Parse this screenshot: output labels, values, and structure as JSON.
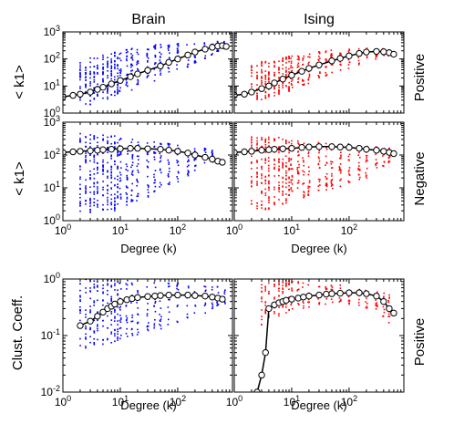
{
  "figure": {
    "column_titles": [
      "Brain",
      "Ising"
    ],
    "row_titles": [
      "Positive",
      "Negative",
      "Positive"
    ],
    "xlabel": "Degree (k)",
    "ylabels": [
      "< k1>",
      "< k1>",
      "Clust. Coeff."
    ],
    "colors": {
      "brain": "#0000ff",
      "ising": "#ff0000",
      "mean": "#000000"
    }
  },
  "chart_data": [
    {
      "type": "scatter",
      "panel": "brain-positive",
      "column": "Brain",
      "row_label": "Positive",
      "x_scale": "log",
      "y_scale": "log",
      "xlim": [
        1,
        900
      ],
      "ylim": [
        1,
        1000
      ],
      "x_ticks": [
        "10^0",
        "10^1",
        "10^2"
      ],
      "y_ticks": [
        "10^0",
        "10^1",
        "10^2",
        "10^3"
      ],
      "ylabel": "< k1>",
      "scatter_color": "#0000ff",
      "scatter_x": [
        2,
        2.5,
        3,
        3.5,
        4,
        5,
        6,
        7,
        8,
        9,
        10,
        13,
        16,
        20,
        30,
        40,
        50,
        70,
        100,
        150,
        200,
        300,
        400,
        500,
        650
      ],
      "scatter_ymin": [
        2,
        2,
        2,
        2,
        3,
        3,
        3,
        4,
        4,
        5,
        5,
        6,
        7,
        9,
        12,
        15,
        20,
        25,
        35,
        50,
        70,
        100,
        140,
        180,
        220
      ],
      "scatter_ymax": [
        80,
        100,
        110,
        120,
        140,
        150,
        160,
        170,
        180,
        200,
        220,
        250,
        280,
        300,
        320,
        340,
        360,
        380,
        400,
        420,
        440,
        460,
        480,
        480,
        450
      ],
      "mean_x": [
        1,
        1.5,
        2,
        3,
        4,
        5,
        7,
        10,
        15,
        20,
        30,
        50,
        70,
        100,
        150,
        200,
        300,
        400,
        500,
        600,
        700
      ],
      "mean_y": [
        4,
        4.5,
        5,
        6,
        7.5,
        9,
        12,
        16,
        22,
        28,
        38,
        55,
        75,
        100,
        140,
        180,
        230,
        270,
        300,
        310,
        290
      ]
    },
    {
      "type": "scatter",
      "panel": "ising-positive",
      "column": "Ising",
      "row_label": "Positive",
      "x_scale": "log",
      "y_scale": "log",
      "xlim": [
        1,
        900
      ],
      "ylim": [
        1,
        1000
      ],
      "x_ticks": [
        "10^0",
        "10^1",
        "10^2"
      ],
      "y_ticks": [
        "10^0",
        "10^1",
        "10^2",
        "10^3"
      ],
      "scatter_color": "#ff0000",
      "scatter_x": [
        2,
        2.5,
        3,
        3.5,
        4,
        5,
        6,
        7,
        8,
        9,
        10,
        13,
        16,
        20,
        30,
        40,
        50,
        70,
        100,
        150,
        200,
        300,
        400,
        500
      ],
      "scatter_ymin": [
        3,
        3,
        3,
        3,
        4,
        4,
        5,
        5,
        6,
        6,
        7,
        8,
        10,
        12,
        15,
        20,
        25,
        30,
        40,
        60,
        80,
        100,
        120,
        120
      ],
      "scatter_ymax": [
        60,
        70,
        80,
        90,
        90,
        100,
        110,
        120,
        130,
        140,
        150,
        160,
        170,
        180,
        190,
        200,
        210,
        220,
        230,
        240,
        250,
        250,
        240,
        220
      ],
      "mean_x": [
        1,
        1.5,
        2,
        3,
        4,
        5,
        7,
        10,
        15,
        20,
        30,
        50,
        70,
        100,
        150,
        200,
        300,
        400,
        500,
        600
      ],
      "mean_y": [
        4.5,
        5,
        6,
        8,
        10,
        13,
        18,
        25,
        35,
        45,
        60,
        85,
        105,
        130,
        160,
        180,
        190,
        185,
        170,
        150
      ]
    },
    {
      "type": "scatter",
      "panel": "brain-negative",
      "column": "Brain",
      "row_label": "Negative",
      "x_scale": "log",
      "y_scale": "log",
      "xlim": [
        1,
        900
      ],
      "ylim": [
        1,
        1000
      ],
      "x_ticks": [
        "10^0",
        "10^1",
        "10^2"
      ],
      "y_ticks": [
        "10^0",
        "10^1",
        "10^2",
        "10^3"
      ],
      "ylabel": "< k1>",
      "xlabel": "Degree (k)",
      "scatter_color": "#0000ff",
      "scatter_x": [
        2,
        2.5,
        3,
        3.5,
        4,
        5,
        6,
        7,
        8,
        9,
        10,
        13,
        16,
        20,
        30,
        40,
        50,
        70,
        100,
        150,
        200,
        300,
        400
      ],
      "scatter_ymin": [
        1.5,
        1.5,
        1.5,
        1.5,
        2,
        2,
        2,
        2,
        2,
        3,
        3,
        3,
        3,
        4,
        5,
        6,
        8,
        10,
        15,
        20,
        30,
        40,
        60
      ],
      "scatter_ymax": [
        500,
        500,
        500,
        450,
        450,
        450,
        400,
        400,
        400,
        380,
        350,
        330,
        320,
        300,
        280,
        260,
        250,
        240,
        230,
        200,
        180,
        160,
        140
      ],
      "mean_x": [
        1,
        1.5,
        2,
        3,
        4,
        5,
        7,
        10,
        15,
        20,
        30,
        50,
        70,
        100,
        150,
        200,
        300,
        400,
        500,
        600
      ],
      "mean_y": [
        120,
        125,
        130,
        135,
        140,
        145,
        150,
        155,
        160,
        160,
        155,
        150,
        140,
        130,
        115,
        100,
        85,
        75,
        65,
        60
      ]
    },
    {
      "type": "scatter",
      "panel": "ising-negative",
      "column": "Ising",
      "row_label": "Negative",
      "x_scale": "log",
      "y_scale": "log",
      "xlim": [
        1,
        900
      ],
      "ylim": [
        1,
        1000
      ],
      "x_ticks": [
        "10^0",
        "10^1",
        "10^2"
      ],
      "y_ticks": [
        "10^0",
        "10^1",
        "10^2",
        "10^3"
      ],
      "xlabel": "Degree (k)",
      "scatter_color": "#ff0000",
      "scatter_x": [
        2,
        2.5,
        3,
        3.5,
        4,
        5,
        6,
        7,
        8,
        9,
        10,
        13,
        16,
        20,
        30,
        40,
        50,
        70,
        100,
        150,
        200,
        300,
        400,
        500
      ],
      "scatter_ymin": [
        2,
        2,
        2,
        2,
        2,
        3,
        3,
        3,
        3,
        4,
        4,
        4,
        5,
        5,
        6,
        7,
        8,
        10,
        12,
        15,
        20,
        30,
        40,
        50
      ],
      "scatter_ymax": [
        400,
        400,
        380,
        380,
        360,
        350,
        340,
        330,
        320,
        310,
        300,
        290,
        280,
        270,
        260,
        250,
        240,
        230,
        220,
        210,
        200,
        190,
        180,
        170
      ],
      "mean_x": [
        1,
        1.5,
        2,
        3,
        4,
        5,
        7,
        10,
        15,
        20,
        30,
        50,
        70,
        100,
        150,
        200,
        300,
        400,
        500,
        600
      ],
      "mean_y": [
        120,
        125,
        130,
        140,
        145,
        150,
        155,
        160,
        170,
        175,
        180,
        180,
        175,
        170,
        160,
        150,
        140,
        130,
        120,
        110
      ]
    },
    {
      "type": "scatter",
      "panel": "brain-clustering",
      "column": "Brain",
      "row_label": "Positive",
      "x_scale": "log",
      "y_scale": "log",
      "xlim": [
        1,
        900
      ],
      "ylim": [
        0.01,
        1
      ],
      "x_ticks": [
        "10^0",
        "10^1",
        "10^2"
      ],
      "y_ticks": [
        "10^-2",
        "10^-1",
        "10^0"
      ],
      "ylabel": "Clust. Coeff.",
      "xlabel": "Degree (k)",
      "scatter_color": "#0000ff",
      "scatter_x": [
        2,
        2.5,
        3,
        3.5,
        4,
        5,
        6,
        7,
        8,
        9,
        10,
        13,
        16,
        20,
        30,
        40,
        50,
        70,
        100,
        150,
        200,
        300,
        400,
        500,
        650
      ],
      "scatter_ymin": [
        0.05,
        0.06,
        0.06,
        0.06,
        0.06,
        0.06,
        0.07,
        0.07,
        0.07,
        0.08,
        0.08,
        0.08,
        0.09,
        0.1,
        0.11,
        0.12,
        0.13,
        0.15,
        0.17,
        0.2,
        0.22,
        0.25,
        0.3,
        0.3,
        0.35
      ],
      "scatter_ymax": [
        1,
        1,
        1,
        1,
        1,
        1,
        1,
        1,
        1,
        1,
        1,
        1,
        0.95,
        0.95,
        0.9,
        0.9,
        0.9,
        0.85,
        0.85,
        0.85,
        0.8,
        0.8,
        0.75,
        0.75,
        0.7
      ],
      "mean_x": [
        2,
        3,
        4,
        5,
        6,
        7,
        8,
        10,
        13,
        16,
        20,
        30,
        40,
        50,
        70,
        100,
        150,
        200,
        300,
        400,
        500,
        600
      ],
      "mean_y": [
        0.15,
        0.18,
        0.22,
        0.26,
        0.3,
        0.33,
        0.36,
        0.4,
        0.43,
        0.45,
        0.47,
        0.49,
        0.5,
        0.51,
        0.52,
        0.52,
        0.52,
        0.51,
        0.5,
        0.48,
        0.46,
        0.44
      ]
    },
    {
      "type": "scatter",
      "panel": "ising-clustering",
      "column": "Ising",
      "row_label": "Positive",
      "x_scale": "log",
      "y_scale": "log",
      "xlim": [
        1,
        900
      ],
      "ylim": [
        0.01,
        1
      ],
      "x_ticks": [
        "10^0",
        "10^1",
        "10^2"
      ],
      "y_ticks": [
        "10^-2",
        "10^-1",
        "10^0"
      ],
      "xlabel": "Degree (k)",
      "scatter_color": "#ff0000",
      "scatter_x": [
        3,
        3.5,
        4,
        5,
        6,
        7,
        8,
        9,
        10,
        13,
        16,
        20,
        30,
        40,
        50,
        70,
        100,
        150,
        200,
        300,
        400,
        500
      ],
      "scatter_ymin": [
        0.15,
        0.18,
        0.2,
        0.22,
        0.22,
        0.25,
        0.25,
        0.28,
        0.28,
        0.3,
        0.3,
        0.32,
        0.33,
        0.35,
        0.35,
        0.35,
        0.35,
        0.32,
        0.3,
        0.25,
        0.2,
        0.15
      ],
      "scatter_ymax": [
        0.8,
        0.85,
        0.9,
        1,
        1,
        1,
        1,
        0.95,
        0.95,
        0.9,
        0.9,
        0.9,
        0.85,
        0.85,
        0.8,
        0.8,
        0.8,
        0.75,
        0.7,
        0.65,
        0.6,
        0.55
      ],
      "mean_x": [
        2.5,
        3,
        3.5,
        4,
        5,
        6,
        7,
        8,
        10,
        13,
        16,
        20,
        30,
        40,
        50,
        70,
        100,
        150,
        200,
        300,
        400,
        500,
        600
      ],
      "mean_y": [
        0.01,
        0.02,
        0.05,
        0.3,
        0.35,
        0.38,
        0.4,
        0.42,
        0.44,
        0.46,
        0.48,
        0.5,
        0.52,
        0.54,
        0.55,
        0.56,
        0.57,
        0.57,
        0.55,
        0.5,
        0.4,
        0.3,
        0.25
      ]
    }
  ]
}
